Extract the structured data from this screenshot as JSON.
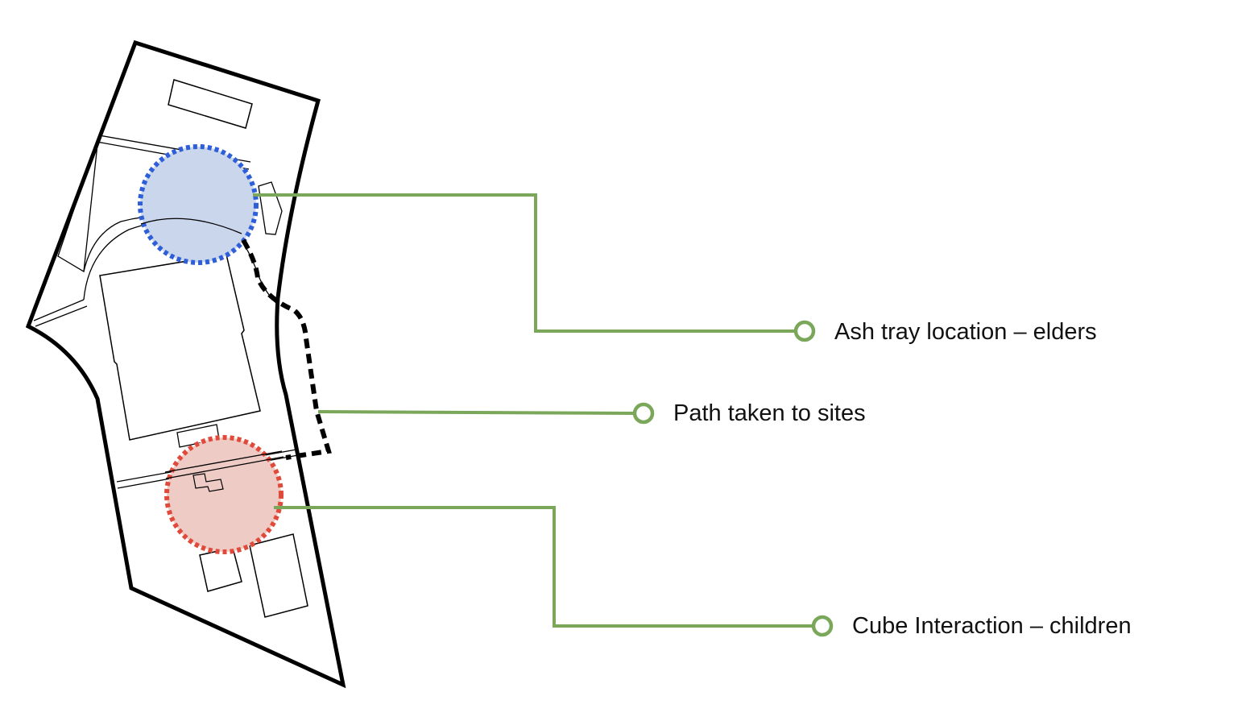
{
  "colors": {
    "outline": "#000000",
    "leader": "#7aa75a",
    "elder_zone_fill": "#c9d6ec",
    "elder_zone_stroke": "#2e5fd8",
    "child_zone_fill": "#efcbc6",
    "child_zone_stroke": "#e04a3a",
    "path": "#000000"
  },
  "annotations": {
    "ash_tray": {
      "label": "Ash tray location – elders",
      "icon": "open-circle-marker-icon"
    },
    "path_taken": {
      "label": "Path taken to sites",
      "icon": "open-circle-marker-icon"
    },
    "cube_interaction": {
      "label": "Cube Interaction – children",
      "icon": "open-circle-marker-icon"
    }
  }
}
